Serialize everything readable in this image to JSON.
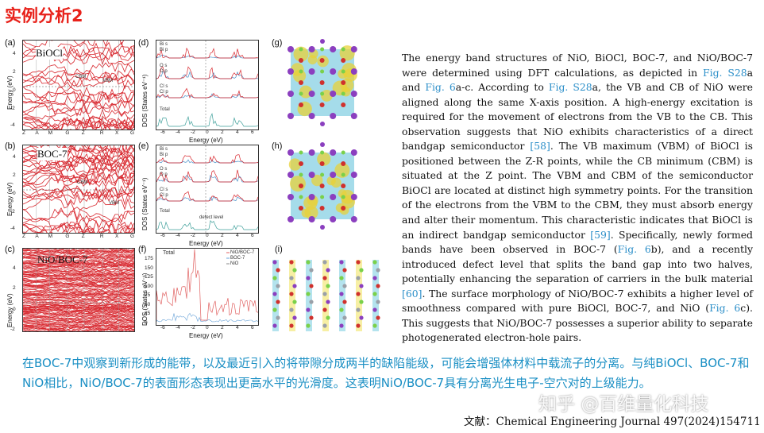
{
  "slide_title": "实例分析2",
  "colors": {
    "title": "#e8211a",
    "body_link": "#2c8fc9",
    "chinese_text": "#1a8fc4",
    "band_line": "#d8262d",
    "dos_blue": "#4a90c9",
    "dos_teal": "#3fa09b"
  },
  "figure": {
    "panels": [
      {
        "label": "(a)",
        "inner_label": "BiOCl",
        "cbm": "CBM",
        "vbm": "VBM",
        "kpoints": [
          "Z",
          "A",
          "M",
          "G",
          "Z",
          "R",
          "X",
          "G"
        ]
      },
      {
        "label": "(b)",
        "inner_label": "BOC-7",
        "cbm": "CBM",
        "vbm": "VBM",
        "kpoints": [
          "Z",
          "A",
          "M",
          "G",
          "Z",
          "R",
          "X",
          "G"
        ]
      },
      {
        "label": "(c)",
        "inner_label": "NiO/BOC-7"
      },
      {
        "label": "(d)",
        "legend": [
          "Bi s",
          "Bi p",
          "O s",
          "O p",
          "Cl s",
          "Cl p",
          "Total"
        ]
      },
      {
        "label": "(e)",
        "legend": [
          "Bi s",
          "Bi p",
          "O s",
          "O p",
          "Cl s",
          "Cl p",
          "Total"
        ],
        "annotation": "defect level"
      },
      {
        "label": "(f)",
        "total_label": "Total",
        "legend": [
          "NiO/BOC-7",
          "BOC-7",
          "NiO"
        ]
      },
      {
        "label": "(g)"
      },
      {
        "label": "(h)"
      },
      {
        "label": "(i)"
      }
    ],
    "energy_axis_label": "Energy (eV)",
    "dos_axis_label": "DOS (States eV⁻¹)",
    "energy_ticks_ab": [
      "4",
      "2",
      "0",
      "-2",
      "-4"
    ],
    "energy_ticks_c": [
      "4",
      "2",
      "0",
      "-2"
    ],
    "dos_x_ticks": [
      "-6",
      "-4",
      "-2",
      "0",
      "2",
      "4",
      "6"
    ],
    "dos_f_y_ticks": [
      "175",
      "150",
      "125",
      "100",
      "75",
      "50",
      "25",
      "0"
    ]
  },
  "body_text": {
    "p1": "The energy band structures of NiO, BiOCl, BOC-7, and NiO/BOC-7 were determined using DFT calculations, as depicted in ",
    "ref1": "Fig. S28",
    "p2": "a and ",
    "ref2": "Fig. 6",
    "p3": "a-c. According to ",
    "ref3": "Fig. S28",
    "p4": "a, the VB and CB of NiO were aligned along the same X-axis position. A high-energy excitation is required for the movement of electrons from the VB to the CB. This observation suggests that NiO exhibits characteristics of a direct bandgap semiconductor ",
    "ref4": "[58]",
    "p5": ". The VB maximum (VBM) of BiOCl is positioned between the Z-R points, while the CB minimum (CBM) is situated at the Z point. The VBM and CBM of the semiconductor BiOCl are located at distinct high symmetry points. For the transition of the electrons from the VBM to the CBM, they must absorb energy and alter their momentum. This characteristic indicates that BiOCl is an indirect bandgap semiconductor ",
    "ref5": "[59]",
    "p6": ". Specifically, newly formed bands have been observed in BOC-7 (",
    "ref6": "Fig. 6",
    "p7": "b), and a recently introduced defect level that splits the band gap into two halves, potentially enhancing the separation of carriers in the bulk material ",
    "ref7": "[60]",
    "p8": ". The surface morphology of NiO/BOC-7 exhibits a higher level of smoothness compared with pure BiOCl, BOC-7, and NiO (",
    "ref8": "Fig. 6",
    "p9": "c). This suggests that NiO/BOC-7 possesses a superior ability to separate photogenerated electron-hole pairs."
  },
  "chinese_summary": "在BOC-7中观察到新形成的能带，以及最近引入的将带隙分成两半的缺陷能级，可能会增强体材料中载流子的分离。与纯BiOCl、BOC-7和NiO相比，NiO/BOC-7的表面形态表现出更高水平的光滑度。这表明NiO/BOC-7具有分离光生电子-空穴对的上级能力。",
  "watermark": "知乎 @百维量化科技",
  "citation": "文献：Chemical Engineering Journal 497(2024)154711"
}
